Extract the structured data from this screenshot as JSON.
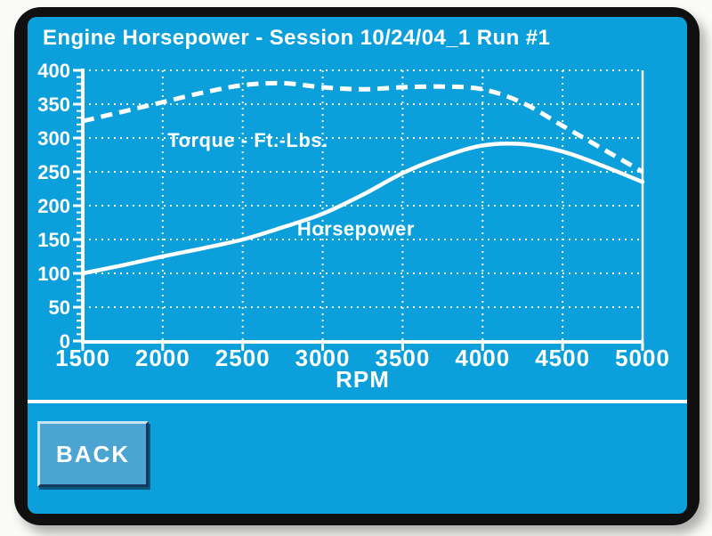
{
  "title": "Engine Horsepower - Session 10/24/04_1 Run #1",
  "footer": {
    "back_label": "BACK"
  },
  "colors": {
    "screen_background": "#0b9fdc",
    "bezel": "#101010",
    "page_background": "#fafaf8",
    "chart_foreground": "#ffffff",
    "button_face": "#4ba4d1",
    "button_highlight": "#c9e4f3",
    "button_shadow": "#14395c"
  },
  "chart_data": {
    "type": "line",
    "title": "",
    "xlabel": "RPM",
    "ylabel": "",
    "xlim": [
      1500,
      5000
    ],
    "ylim": [
      0,
      400
    ],
    "x_ticks": [
      1500,
      2000,
      2500,
      3000,
      3500,
      4000,
      4500,
      5000
    ],
    "y_ticks": [
      0,
      50,
      100,
      150,
      200,
      250,
      300,
      350,
      400
    ],
    "y_minor_step": 10,
    "y_major_step": 50,
    "grid": "dotted",
    "legend_position": "inline-labels",
    "series": [
      {
        "name": "Torque - Ft.-Lbs.",
        "line_style": "dashed",
        "x": [
          1500,
          1750,
          2000,
          2250,
          2500,
          2750,
          3000,
          3250,
          3500,
          3750,
          4000,
          4250,
          4500,
          4750,
          5000
        ],
        "values": [
          325,
          339,
          353,
          367,
          378,
          381,
          375,
          372,
          375,
          376,
          372,
          352,
          318,
          284,
          250
        ],
        "label_pos": {
          "x": 2030,
          "y": 287
        }
      },
      {
        "name": "Horsepower",
        "line_style": "solid",
        "x": [
          1500,
          1750,
          2000,
          2250,
          2500,
          2750,
          3000,
          3250,
          3500,
          3750,
          4000,
          4250,
          4500,
          4750,
          5000
        ],
        "values": [
          100,
          112,
          125,
          137,
          150,
          168,
          188,
          216,
          248,
          272,
          289,
          291,
          280,
          259,
          235
        ],
        "label_pos": {
          "x": 2840,
          "y": 156
        }
      }
    ]
  }
}
